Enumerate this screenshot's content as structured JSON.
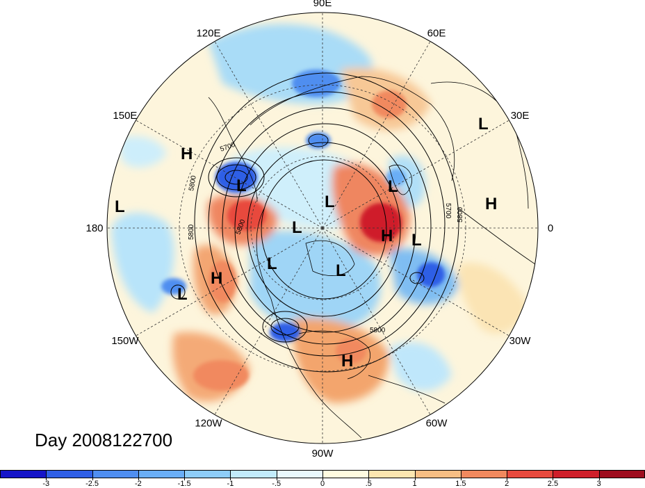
{
  "title": "Day 2008122700",
  "longitude_labels": [
    {
      "text": "90E",
      "lon": 90
    },
    {
      "text": "60E",
      "lon": 60
    },
    {
      "text": "30E",
      "lon": 30
    },
    {
      "text": "0",
      "lon": 0
    },
    {
      "text": "30W",
      "lon": -30
    },
    {
      "text": "60W",
      "lon": -60
    },
    {
      "text": "90W",
      "lon": -90
    },
    {
      "text": "120W",
      "lon": -120
    },
    {
      "text": "150W",
      "lon": -150
    },
    {
      "text": "180",
      "lon": 180
    },
    {
      "text": "150E",
      "lon": 150
    },
    {
      "text": "120E",
      "lon": 120
    }
  ],
  "pressure_centers": [
    {
      "text": "H",
      "where": "north-pacific-west"
    },
    {
      "text": "L",
      "where": "kamchatka"
    },
    {
      "text": "L",
      "where": "dateline-tropics"
    },
    {
      "text": "L",
      "where": "bering"
    },
    {
      "text": "L",
      "where": "pole"
    },
    {
      "text": "L",
      "where": "canadian-arctic"
    },
    {
      "text": "L",
      "where": "hudson"
    },
    {
      "text": "L",
      "where": "gulf-of-alaska"
    },
    {
      "text": "H",
      "where": "northeast-pacific"
    },
    {
      "text": "H",
      "where": "gulf-of-mexico"
    },
    {
      "text": "L",
      "where": "scandinavia"
    },
    {
      "text": "H",
      "where": "greenland-sea"
    },
    {
      "text": "L",
      "where": "iceland"
    },
    {
      "text": "L",
      "where": "caspian"
    },
    {
      "text": "H",
      "where": "sahara"
    }
  ],
  "contour_labels": [
    "5700",
    "5800",
    "5800",
    "5800",
    "5700",
    "5800",
    "5800"
  ],
  "colorbar": {
    "labels": [
      "-3",
      "-2.5",
      "-2",
      "-1.5",
      "-1",
      "-.5",
      "0",
      ".5",
      "1",
      "1.5",
      "2",
      "2.5",
      "3"
    ],
    "colors": [
      "#1515c8",
      "#2f5fe6",
      "#4f8ef0",
      "#6aaef6",
      "#8ecdf8",
      "#c2ebfb",
      "#e9f8fd",
      "#fffbe0",
      "#fce6b0",
      "#f7be84",
      "#f1895e",
      "#e84a3e",
      "#cf1f2a",
      "#9e0d1e"
    ]
  },
  "colors": {
    "boundary": "#000000",
    "grid": "#333333",
    "background": "#fdf3d6"
  }
}
